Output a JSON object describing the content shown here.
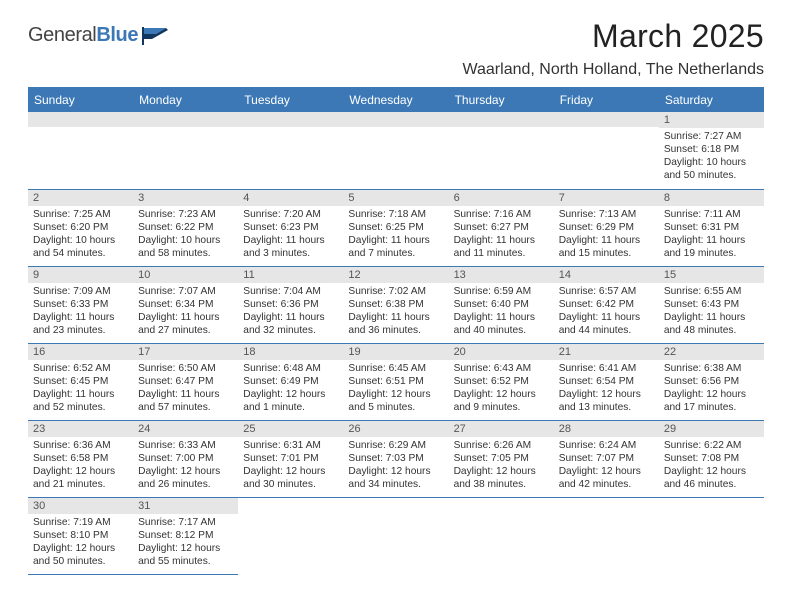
{
  "brand": {
    "name_a": "General",
    "name_b": "Blue"
  },
  "title": "March 2025",
  "location": "Waarland, North Holland, The Netherlands",
  "colors": {
    "header_bg": "#3b78b5",
    "header_text": "#ffffff",
    "daynum_bg": "#e6e6e6",
    "rule": "#3b78b5",
    "body_text": "#333333"
  },
  "daynames": [
    "Sunday",
    "Monday",
    "Tuesday",
    "Wednesday",
    "Thursday",
    "Friday",
    "Saturday"
  ],
  "weeks": [
    [
      null,
      null,
      null,
      null,
      null,
      null,
      {
        "n": "1",
        "sr": "Sunrise: 7:27 AM",
        "ss": "Sunset: 6:18 PM",
        "dl": "Daylight: 10 hours and 50 minutes."
      }
    ],
    [
      {
        "n": "2",
        "sr": "Sunrise: 7:25 AM",
        "ss": "Sunset: 6:20 PM",
        "dl": "Daylight: 10 hours and 54 minutes."
      },
      {
        "n": "3",
        "sr": "Sunrise: 7:23 AM",
        "ss": "Sunset: 6:22 PM",
        "dl": "Daylight: 10 hours and 58 minutes."
      },
      {
        "n": "4",
        "sr": "Sunrise: 7:20 AM",
        "ss": "Sunset: 6:23 PM",
        "dl": "Daylight: 11 hours and 3 minutes."
      },
      {
        "n": "5",
        "sr": "Sunrise: 7:18 AM",
        "ss": "Sunset: 6:25 PM",
        "dl": "Daylight: 11 hours and 7 minutes."
      },
      {
        "n": "6",
        "sr": "Sunrise: 7:16 AM",
        "ss": "Sunset: 6:27 PM",
        "dl": "Daylight: 11 hours and 11 minutes."
      },
      {
        "n": "7",
        "sr": "Sunrise: 7:13 AM",
        "ss": "Sunset: 6:29 PM",
        "dl": "Daylight: 11 hours and 15 minutes."
      },
      {
        "n": "8",
        "sr": "Sunrise: 7:11 AM",
        "ss": "Sunset: 6:31 PM",
        "dl": "Daylight: 11 hours and 19 minutes."
      }
    ],
    [
      {
        "n": "9",
        "sr": "Sunrise: 7:09 AM",
        "ss": "Sunset: 6:33 PM",
        "dl": "Daylight: 11 hours and 23 minutes."
      },
      {
        "n": "10",
        "sr": "Sunrise: 7:07 AM",
        "ss": "Sunset: 6:34 PM",
        "dl": "Daylight: 11 hours and 27 minutes."
      },
      {
        "n": "11",
        "sr": "Sunrise: 7:04 AM",
        "ss": "Sunset: 6:36 PM",
        "dl": "Daylight: 11 hours and 32 minutes."
      },
      {
        "n": "12",
        "sr": "Sunrise: 7:02 AM",
        "ss": "Sunset: 6:38 PM",
        "dl": "Daylight: 11 hours and 36 minutes."
      },
      {
        "n": "13",
        "sr": "Sunrise: 6:59 AM",
        "ss": "Sunset: 6:40 PM",
        "dl": "Daylight: 11 hours and 40 minutes."
      },
      {
        "n": "14",
        "sr": "Sunrise: 6:57 AM",
        "ss": "Sunset: 6:42 PM",
        "dl": "Daylight: 11 hours and 44 minutes."
      },
      {
        "n": "15",
        "sr": "Sunrise: 6:55 AM",
        "ss": "Sunset: 6:43 PM",
        "dl": "Daylight: 11 hours and 48 minutes."
      }
    ],
    [
      {
        "n": "16",
        "sr": "Sunrise: 6:52 AM",
        "ss": "Sunset: 6:45 PM",
        "dl": "Daylight: 11 hours and 52 minutes."
      },
      {
        "n": "17",
        "sr": "Sunrise: 6:50 AM",
        "ss": "Sunset: 6:47 PM",
        "dl": "Daylight: 11 hours and 57 minutes."
      },
      {
        "n": "18",
        "sr": "Sunrise: 6:48 AM",
        "ss": "Sunset: 6:49 PM",
        "dl": "Daylight: 12 hours and 1 minute."
      },
      {
        "n": "19",
        "sr": "Sunrise: 6:45 AM",
        "ss": "Sunset: 6:51 PM",
        "dl": "Daylight: 12 hours and 5 minutes."
      },
      {
        "n": "20",
        "sr": "Sunrise: 6:43 AM",
        "ss": "Sunset: 6:52 PM",
        "dl": "Daylight: 12 hours and 9 minutes."
      },
      {
        "n": "21",
        "sr": "Sunrise: 6:41 AM",
        "ss": "Sunset: 6:54 PM",
        "dl": "Daylight: 12 hours and 13 minutes."
      },
      {
        "n": "22",
        "sr": "Sunrise: 6:38 AM",
        "ss": "Sunset: 6:56 PM",
        "dl": "Daylight: 12 hours and 17 minutes."
      }
    ],
    [
      {
        "n": "23",
        "sr": "Sunrise: 6:36 AM",
        "ss": "Sunset: 6:58 PM",
        "dl": "Daylight: 12 hours and 21 minutes."
      },
      {
        "n": "24",
        "sr": "Sunrise: 6:33 AM",
        "ss": "Sunset: 7:00 PM",
        "dl": "Daylight: 12 hours and 26 minutes."
      },
      {
        "n": "25",
        "sr": "Sunrise: 6:31 AM",
        "ss": "Sunset: 7:01 PM",
        "dl": "Daylight: 12 hours and 30 minutes."
      },
      {
        "n": "26",
        "sr": "Sunrise: 6:29 AM",
        "ss": "Sunset: 7:03 PM",
        "dl": "Daylight: 12 hours and 34 minutes."
      },
      {
        "n": "27",
        "sr": "Sunrise: 6:26 AM",
        "ss": "Sunset: 7:05 PM",
        "dl": "Daylight: 12 hours and 38 minutes."
      },
      {
        "n": "28",
        "sr": "Sunrise: 6:24 AM",
        "ss": "Sunset: 7:07 PM",
        "dl": "Daylight: 12 hours and 42 minutes."
      },
      {
        "n": "29",
        "sr": "Sunrise: 6:22 AM",
        "ss": "Sunset: 7:08 PM",
        "dl": "Daylight: 12 hours and 46 minutes."
      }
    ],
    [
      {
        "n": "30",
        "sr": "Sunrise: 7:19 AM",
        "ss": "Sunset: 8:10 PM",
        "dl": "Daylight: 12 hours and 50 minutes."
      },
      {
        "n": "31",
        "sr": "Sunrise: 7:17 AM",
        "ss": "Sunset: 8:12 PM",
        "dl": "Daylight: 12 hours and 55 minutes."
      },
      null,
      null,
      null,
      null,
      null
    ]
  ]
}
